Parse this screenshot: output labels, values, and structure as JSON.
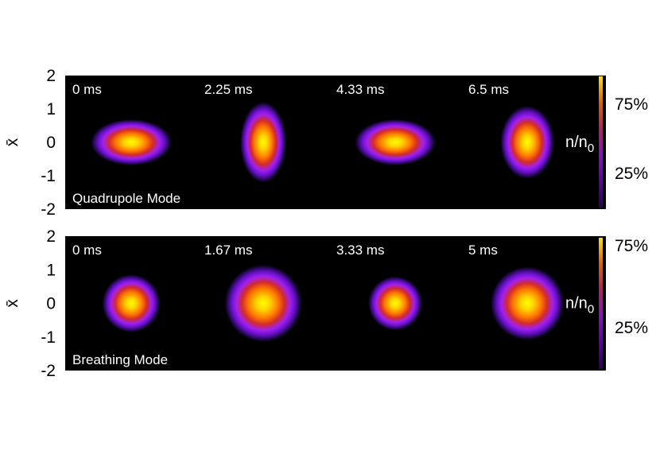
{
  "chart_data": [
    {
      "type": "heatmap",
      "mode_label": "Quadrupole Mode",
      "ylabel": "x̄",
      "ylim": [
        -2,
        2
      ],
      "yticks": [
        "2",
        "1",
        "0",
        "-1",
        "-2"
      ],
      "colorbar": {
        "label": "n/n",
        "label_sub": "0",
        "ticks": [
          "75%",
          "25%"
        ]
      },
      "snapshots": [
        {
          "time": "0 ms",
          "rx": 1.05,
          "ry": 0.6
        },
        {
          "time": "2.25 ms",
          "rx": 0.6,
          "ry": 1.05
        },
        {
          "time": "4.33 ms",
          "rx": 1.05,
          "ry": 0.6
        },
        {
          "time": "6.5 ms",
          "rx": 0.7,
          "ry": 0.95
        }
      ]
    },
    {
      "type": "heatmap",
      "mode_label": "Breathing Mode",
      "ylabel": "x̄",
      "ylim": [
        -2,
        2
      ],
      "yticks": [
        "2",
        "1",
        "0",
        "-1",
        "-2"
      ],
      "colorbar": {
        "label": "n/n",
        "label_sub": "0",
        "ticks": [
          "75%",
          "25%"
        ]
      },
      "snapshots": [
        {
          "time": "0 ms",
          "rx": 0.75,
          "ry": 0.75
        },
        {
          "time": "1.67 ms",
          "rx": 1.0,
          "ry": 1.0
        },
        {
          "time": "3.33 ms",
          "rx": 0.7,
          "ry": 0.7
        },
        {
          "time": "5 ms",
          "rx": 0.95,
          "ry": 0.95
        }
      ]
    }
  ]
}
